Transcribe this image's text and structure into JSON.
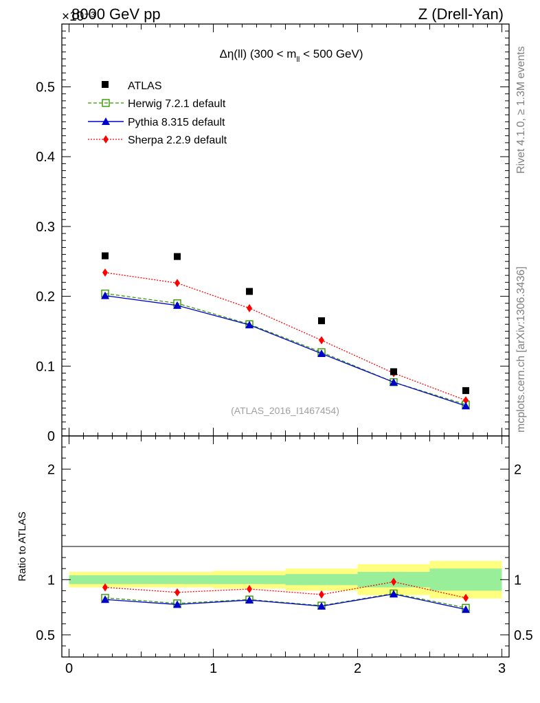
{
  "header": {
    "left": "8000 GeV pp",
    "right": "Z (Drell-Yan)",
    "scale_exponent": "×10⁻³"
  },
  "side_labels": {
    "rivet": "Rivet 4.1.0, ≥ 1.3M events",
    "mcplots": "mcplots.cern.ch [arXiv:1306.3436]"
  },
  "chart_data": {
    "type": "line",
    "title": "Δη(ll) (300 < m_ll < 500 GeV)",
    "title_main": "Δη(ll) (300 < m",
    "title_sub": "ll",
    "title_tail": " < 500 GeV)",
    "watermark": "(ATLAS_2016_I1467454)",
    "x": [
      0.25,
      0.75,
      1.25,
      1.75,
      2.25,
      2.75
    ],
    "x_edges": [
      0,
      0.5,
      1.0,
      1.5,
      2.0,
      2.5,
      3.0
    ],
    "xlim": [
      -0.05,
      3.05
    ],
    "ylim": [
      0,
      0.59
    ],
    "ratio_ylim": [
      0.3,
      2.3
    ],
    "ratio_ylabel": "Ratio to ATLAS",
    "x_ticks": [
      "0",
      "1",
      "2",
      "3"
    ],
    "y_ticks": [
      "0",
      "0.1",
      "0.2",
      "0.3",
      "0.4",
      "0.5"
    ],
    "ratio_ticks": [
      "0.5",
      "1",
      "2"
    ],
    "data": {
      "name": "ATLAS",
      "values": [
        0.258,
        0.257,
        0.207,
        0.165,
        0.092,
        0.065
      ],
      "band_inner": [
        0.04,
        0.04,
        0.04,
        0.05,
        0.07,
        0.1
      ],
      "band_outer": [
        0.07,
        0.07,
        0.08,
        0.1,
        0.14,
        0.17
      ],
      "color": "#000000"
    },
    "series": [
      {
        "name": "Herwig 7.2.1 default",
        "color": "#339900",
        "marker": "open-square",
        "dash": "5,3",
        "values": [
          0.204,
          0.19,
          0.16,
          0.12,
          0.077,
          0.045
        ],
        "ratio": [
          0.835,
          0.785,
          0.82,
          0.765,
          0.875,
          0.745
        ]
      },
      {
        "name": "Pythia 8.315 default",
        "color": "#0000cc",
        "marker": "triangle",
        "dash": "",
        "values": [
          0.201,
          0.187,
          0.159,
          0.118,
          0.077,
          0.043
        ],
        "ratio": [
          0.82,
          0.775,
          0.815,
          0.76,
          0.87,
          0.73
        ]
      },
      {
        "name": "Sherpa 2.2.9 default",
        "color": "#ff0000",
        "marker": "diamond",
        "dash": "2,2",
        "values": [
          0.234,
          0.219,
          0.183,
          0.137,
          0.09,
          0.051
        ],
        "ratio": [
          0.93,
          0.885,
          0.915,
          0.865,
          0.98,
          0.835
        ]
      }
    ]
  }
}
